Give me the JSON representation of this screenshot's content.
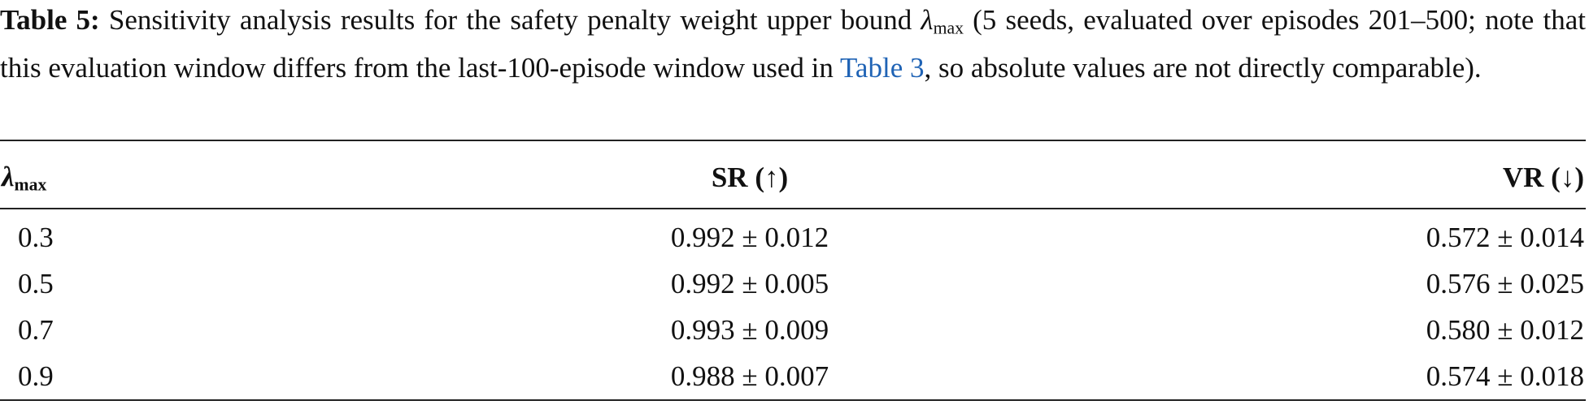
{
  "caption": {
    "label": "Table 5:",
    "text_1": "Sensitivity analysis results for the safety penalty weight upper bound",
    "symbol": "λ",
    "symbol_sub": "max",
    "text_2": "(5 seeds, evaluated over episodes 201–500; note that this evaluation window differs from the last-100-episode window used in",
    "link": "Table 3",
    "text_3": ", so absolute values are not directly comparable)."
  },
  "table": {
    "header": [
      {
        "symbol": "λ",
        "sub": "max"
      },
      "SR (↑)",
      "VR (↓)"
    ],
    "rows": [
      [
        "0.3",
        "0.992 ± 0.012",
        "0.572 ± 0.014"
      ],
      [
        "0.5",
        "0.992 ± 0.005",
        "0.576 ± 0.025"
      ],
      [
        "0.7",
        "0.993 ± 0.009",
        "0.580 ± 0.012"
      ],
      [
        "0.9",
        "0.988 ± 0.007",
        "0.574 ± 0.018"
      ]
    ]
  }
}
